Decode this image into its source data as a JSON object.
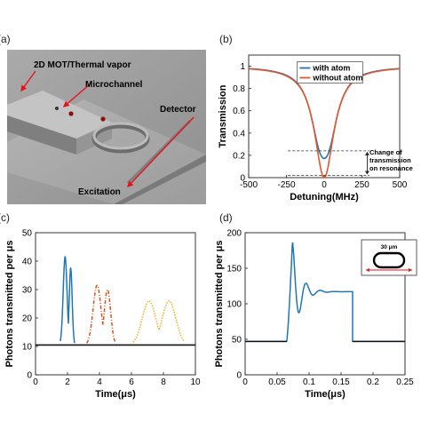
{
  "panels": {
    "a": {
      "label": "(a)",
      "annotations": {
        "mot": "2D MOT/Thermal vapor",
        "microchannel": "Microchannel",
        "detector": "Detector",
        "excitation": "Excitation"
      }
    },
    "b": {
      "label": "(b)"
    },
    "c": {
      "label": "(c)"
    },
    "d": {
      "label": "(d)"
    }
  },
  "chart_data": [
    {
      "panel": "b",
      "type": "line",
      "xlabel": "Detuning(MHz)",
      "ylabel": "Transmission",
      "xlim": [
        -500,
        500
      ],
      "ylim": [
        0,
        1.1
      ],
      "xticks": [
        -500,
        -250,
        0,
        250,
        500
      ],
      "yticks": [
        0,
        0.2,
        0.4,
        0.6,
        0.8,
        1
      ],
      "legend": "top-center",
      "series": [
        {
          "name": "with atom",
          "color": "#1f77b4",
          "min": 0.04,
          "split": 30,
          "width": 150
        },
        {
          "name": "without atom",
          "color": "#e4572e",
          "min": 0.0,
          "split": 0,
          "width": 155
        }
      ],
      "annotation": {
        "text": [
          "Change of",
          "transmission",
          "on resonance"
        ],
        "upper": 0.24,
        "lower": 0.02
      }
    },
    {
      "panel": "c",
      "type": "line",
      "xlabel": "Time(μs)",
      "ylabel": "Photons transmitted per μs",
      "xlim": [
        0,
        10
      ],
      "ylim": [
        0,
        50
      ],
      "xticks": [
        0,
        2,
        4,
        6,
        8,
        10
      ],
      "yticks": [
        0,
        10,
        20,
        30,
        40,
        50
      ],
      "baseline": 10.5,
      "series": [
        {
          "color": "#1f77b4",
          "dash": "",
          "peaks": [
            [
              1.85,
              41.5,
              0.17
            ],
            [
              2.2,
              37.5,
              0.13
            ]
          ],
          "start": 1.55,
          "end": 2.45
        },
        {
          "color": "#d95319",
          "dash": "4,2,1,2",
          "peaks": [
            [
              3.85,
              31.5,
              0.35
            ],
            [
              4.5,
              30,
              0.28
            ]
          ],
          "start": 3.2,
          "end": 5.0
        },
        {
          "color": "#edb120",
          "dash": "1.5,1.5",
          "peaks": [
            [
              7.1,
              26,
              0.6
            ],
            [
              8.35,
              26,
              0.6
            ]
          ],
          "start": 6.1,
          "end": 9.3
        }
      ]
    },
    {
      "panel": "d",
      "type": "line",
      "xlabel": "Time(μs)",
      "ylabel": "Photons transmitted per μs",
      "xlim": [
        0,
        0.25
      ],
      "ylim": [
        0,
        200
      ],
      "xticks": [
        0,
        0.05,
        0.1,
        0.15,
        0.2,
        0.25
      ],
      "yticks": [
        0,
        50,
        100,
        150,
        200
      ],
      "baseline": 47,
      "series": [
        {
          "color": "#1f77b4",
          "start": 0.065,
          "end": 0.168,
          "plateau": 117,
          "peak": 188,
          "peak_t": 0.074
        }
      ],
      "inset": {
        "label": "30 μm"
      }
    }
  ]
}
